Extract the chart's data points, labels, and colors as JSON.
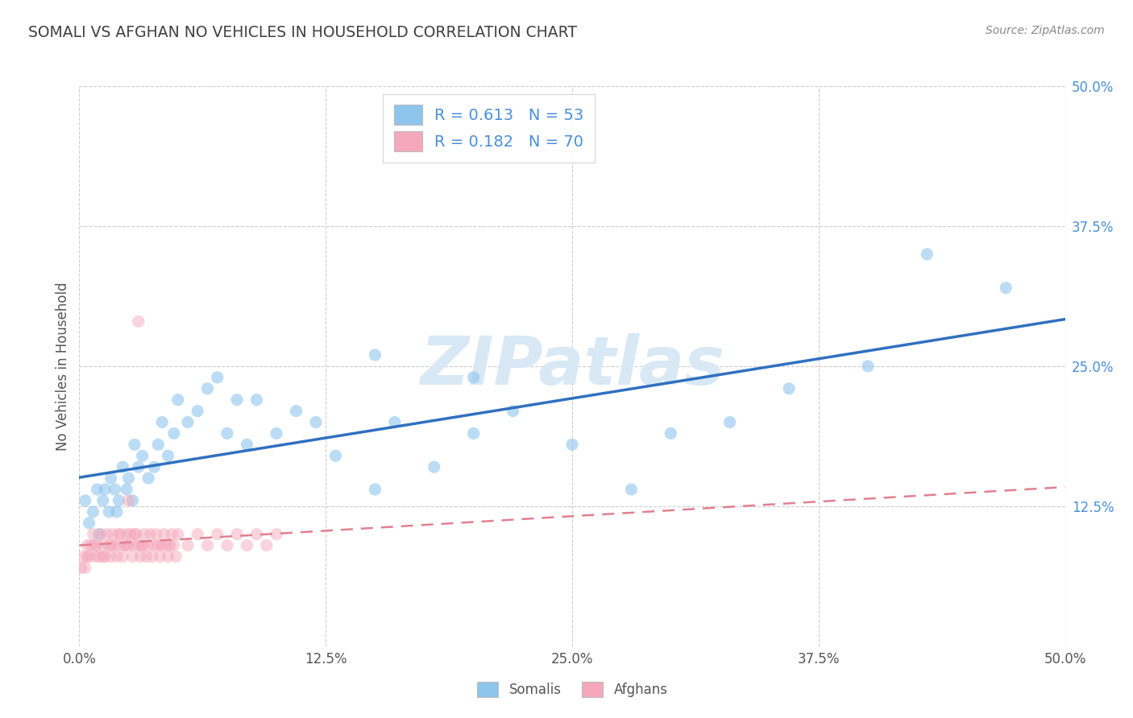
{
  "title": "SOMALI VS AFGHAN NO VEHICLES IN HOUSEHOLD CORRELATION CHART",
  "source": "Source: ZipAtlas.com",
  "ylabel": "No Vehicles in Household",
  "xlim": [
    0.0,
    0.5
  ],
  "ylim": [
    0.0,
    0.5
  ],
  "xtick_values": [
    0.0,
    0.125,
    0.25,
    0.375,
    0.5
  ],
  "xtick_labels": [
    "0.0%",
    "12.5%",
    "25.0%",
    "37.5%",
    "50.0%"
  ],
  "ytick_values": [
    0.125,
    0.25,
    0.375,
    0.5
  ],
  "ytick_labels": [
    "12.5%",
    "25.0%",
    "37.5%",
    "50.0%"
  ],
  "somali_R": 0.613,
  "somali_N": 53,
  "afghan_R": 0.182,
  "afghan_N": 70,
  "somali_color": "#8ec5ed",
  "afghan_color": "#f5a8bc",
  "somali_line_color": "#3070c0",
  "afghan_line_color": "#e08090",
  "background_color": "#ffffff",
  "grid_color": "#cccccc",
  "title_color": "#404040",
  "watermark_color": "#d8e8f5",
  "legend_color": "#4a90d9",
  "somali_x": [
    0.003,
    0.005,
    0.007,
    0.009,
    0.01,
    0.012,
    0.013,
    0.015,
    0.016,
    0.018,
    0.019,
    0.02,
    0.022,
    0.024,
    0.025,
    0.027,
    0.028,
    0.03,
    0.032,
    0.035,
    0.038,
    0.04,
    0.042,
    0.045,
    0.048,
    0.05,
    0.055,
    0.06,
    0.065,
    0.07,
    0.075,
    0.08,
    0.085,
    0.09,
    0.1,
    0.11,
    0.12,
    0.13,
    0.15,
    0.16,
    0.18,
    0.2,
    0.22,
    0.25,
    0.28,
    0.3,
    0.33,
    0.36,
    0.15,
    0.2,
    0.4,
    0.43,
    0.47
  ],
  "somali_y": [
    0.13,
    0.11,
    0.12,
    0.14,
    0.1,
    0.13,
    0.14,
    0.12,
    0.15,
    0.14,
    0.12,
    0.13,
    0.16,
    0.14,
    0.15,
    0.13,
    0.18,
    0.16,
    0.17,
    0.15,
    0.16,
    0.18,
    0.2,
    0.17,
    0.19,
    0.22,
    0.2,
    0.21,
    0.23,
    0.24,
    0.19,
    0.22,
    0.18,
    0.22,
    0.19,
    0.21,
    0.2,
    0.17,
    0.14,
    0.2,
    0.16,
    0.19,
    0.21,
    0.18,
    0.14,
    0.19,
    0.2,
    0.23,
    0.26,
    0.24,
    0.25,
    0.35,
    0.32
  ],
  "afghan_x": [
    0.001,
    0.002,
    0.003,
    0.004,
    0.005,
    0.006,
    0.007,
    0.008,
    0.009,
    0.01,
    0.011,
    0.012,
    0.013,
    0.014,
    0.015,
    0.016,
    0.017,
    0.018,
    0.019,
    0.02,
    0.021,
    0.022,
    0.023,
    0.024,
    0.025,
    0.026,
    0.027,
    0.028,
    0.029,
    0.03,
    0.031,
    0.032,
    0.033,
    0.034,
    0.035,
    0.036,
    0.037,
    0.038,
    0.039,
    0.04,
    0.041,
    0.042,
    0.043,
    0.044,
    0.045,
    0.046,
    0.047,
    0.048,
    0.049,
    0.05,
    0.055,
    0.06,
    0.065,
    0.07,
    0.075,
    0.08,
    0.085,
    0.09,
    0.095,
    0.1,
    0.004,
    0.008,
    0.012,
    0.016,
    0.02,
    0.024,
    0.028,
    0.032,
    0.03,
    0.025
  ],
  "afghan_y": [
    0.07,
    0.08,
    0.07,
    0.09,
    0.08,
    0.09,
    0.1,
    0.08,
    0.09,
    0.08,
    0.1,
    0.09,
    0.08,
    0.1,
    0.09,
    0.08,
    0.1,
    0.09,
    0.08,
    0.09,
    0.1,
    0.08,
    0.09,
    0.1,
    0.09,
    0.1,
    0.08,
    0.09,
    0.1,
    0.09,
    0.08,
    0.09,
    0.1,
    0.08,
    0.09,
    0.1,
    0.08,
    0.09,
    0.1,
    0.09,
    0.08,
    0.09,
    0.1,
    0.09,
    0.08,
    0.09,
    0.1,
    0.09,
    0.08,
    0.1,
    0.09,
    0.1,
    0.09,
    0.1,
    0.09,
    0.1,
    0.09,
    0.1,
    0.09,
    0.1,
    0.08,
    0.09,
    0.08,
    0.09,
    0.1,
    0.09,
    0.1,
    0.09,
    0.29,
    0.13
  ]
}
